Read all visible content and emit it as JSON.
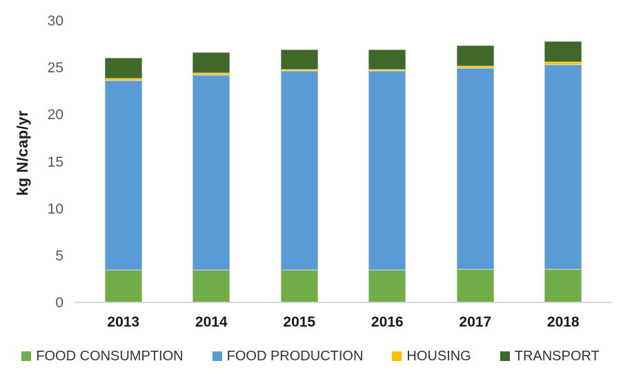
{
  "chart_data": {
    "type": "bar",
    "stacked": true,
    "title": "",
    "categories": [
      "2013",
      "2014",
      "2015",
      "2016",
      "2017",
      "2018"
    ],
    "series": [
      {
        "name": "FOOD CONSUMPTION",
        "color": "#70AD47",
        "values": [
          3.5,
          3.5,
          3.5,
          3.5,
          3.6,
          3.6
        ]
      },
      {
        "name": "FOOD PRODUCTION",
        "color": "#5B9BD5",
        "values": [
          20.2,
          20.8,
          21.2,
          21.2,
          21.4,
          21.8
        ]
      },
      {
        "name": "HOUSING",
        "color": "#FFC000",
        "values": [
          0.2,
          0.2,
          0.2,
          0.2,
          0.2,
          0.25
        ]
      },
      {
        "name": "TRANSPORT",
        "color": "#406828",
        "values": [
          2.2,
          2.2,
          2.1,
          2.1,
          2.2,
          2.25
        ]
      }
    ],
    "totals": [
      26.1,
      26.7,
      27.0,
      27.0,
      27.4,
      27.9
    ],
    "xlabel": "",
    "ylabel": "kg N/cap/yr",
    "ylim": [
      0,
      30
    ],
    "yticks": [
      0,
      5,
      10,
      15,
      20,
      25,
      30
    ],
    "grid": false,
    "legend_position": "bottom"
  },
  "style": {
    "tick_color": "#595959",
    "category_label_color": "#1a1a1a",
    "axis_line_color": "#d9d9d9",
    "legend_text_color": "#333333"
  }
}
